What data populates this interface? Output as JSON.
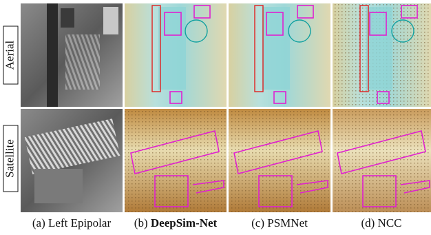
{
  "row_labels": [
    "Aerial",
    "Satellite"
  ],
  "captions": [
    {
      "label": "(a)",
      "name": "Left Epipolar"
    },
    {
      "label": "(b)",
      "name": "DeepSim-Net"
    },
    {
      "label": "(c)",
      "name": "PSMNet"
    },
    {
      "label": "(d)",
      "name": "NCC"
    }
  ]
}
